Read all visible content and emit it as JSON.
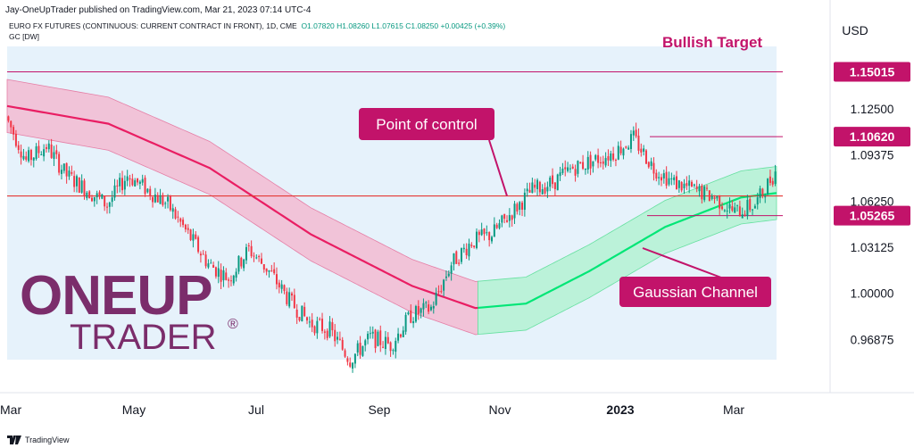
{
  "header": {
    "publisher": "Jay-OneUpTrader published on TradingView.com, Mar 21, 2023 07:14 UTC-4",
    "symbol_line": "EURO FX FUTURES (CONTINUOUS: CURRENT CONTRACT IN FRONT), 1D, CME",
    "ohlc": {
      "o": "O1.07820",
      "h": "H1.08260",
      "l": "L1.07615",
      "c": "C1.08250",
      "chg": "+0.00425 (+0.39%)"
    },
    "indicator": "GC [DW]"
  },
  "footer": {
    "brand": "TradingView"
  },
  "logo": {
    "line1": "ONEUP",
    "line2": "TRADER",
    "reg": "®",
    "color": "#7b2d6b"
  },
  "colors": {
    "up": "#089981",
    "down": "#f23645",
    "magenta": "#c2136a",
    "band_bear_fill": "#f4b3cc",
    "band_bull_fill": "#9ff2c3",
    "bear_mid": "#e91e63",
    "bull_mid": "#00e676",
    "bg_shade": "#e6f2fb",
    "poc_line": "#e53935"
  },
  "chart_data": {
    "type": "candlestick",
    "price_axis": {
      "unit": "USD",
      "ticks": [
        "1.12500",
        "1.09375",
        "1.06250",
        "1.03125",
        "1.00000",
        "0.96875"
      ]
    },
    "time_axis": {
      "ticks": [
        "Mar",
        "May",
        "Jul",
        "Sep",
        "Nov",
        "2023",
        "Mar"
      ]
    },
    "price_labels": [
      {
        "label": "Bullish Target",
        "value": "1.15015"
      },
      {
        "label": "",
        "value": "1.10620"
      },
      {
        "label": "Point of control",
        "value": ""
      },
      {
        "label": "",
        "value": "1.05265"
      }
    ],
    "annotations": [
      "Bullish Target",
      "Point of control",
      "Gaussian Channel"
    ],
    "levels": {
      "bullish_target": 1.15015,
      "upper_resistance": 1.1062,
      "point_of_control": 1.066,
      "lower_support": 1.05265
    },
    "ylim": [
      0.955,
      1.165
    ],
    "price_path": [
      [
        0,
        1.12
      ],
      [
        8,
        1.09
      ],
      [
        16,
        1.1
      ],
      [
        24,
        1.08
      ],
      [
        32,
        1.07
      ],
      [
        40,
        1.06
      ],
      [
        48,
        1.08
      ],
      [
        56,
        1.07
      ],
      [
        64,
        1.06
      ],
      [
        72,
        1.04
      ],
      [
        80,
        1.02
      ],
      [
        88,
        1.01
      ],
      [
        96,
        1.03
      ],
      [
        104,
        1.015
      ],
      [
        112,
        0.995
      ],
      [
        120,
        0.98
      ],
      [
        128,
        0.975
      ],
      [
        136,
        0.955
      ],
      [
        144,
        0.97
      ],
      [
        152,
        0.965
      ],
      [
        160,
        0.985
      ],
      [
        168,
        0.99
      ],
      [
        176,
        1.02
      ],
      [
        184,
        1.035
      ],
      [
        192,
        1.04
      ],
      [
        200,
        1.055
      ],
      [
        208,
        1.07
      ],
      [
        216,
        1.075
      ],
      [
        224,
        1.085
      ],
      [
        232,
        1.09
      ],
      [
        240,
        1.095
      ],
      [
        248,
        1.105
      ],
      [
        256,
        1.085
      ],
      [
        264,
        1.075
      ],
      [
        272,
        1.07
      ],
      [
        280,
        1.065
      ],
      [
        288,
        1.055
      ],
      [
        296,
        1.06
      ],
      [
        304,
        1.0825
      ]
    ],
    "channel_mid": [
      [
        0,
        1.127
      ],
      [
        40,
        1.115
      ],
      [
        80,
        1.085
      ],
      [
        120,
        1.04
      ],
      [
        160,
        1.005
      ],
      [
        185,
        0.99
      ],
      [
        205,
        0.993
      ],
      [
        230,
        1.015
      ],
      [
        260,
        1.045
      ],
      [
        290,
        1.065
      ],
      [
        304,
        1.068
      ]
    ],
    "channel_half_width": 0.018,
    "bull_start_index": 186
  }
}
